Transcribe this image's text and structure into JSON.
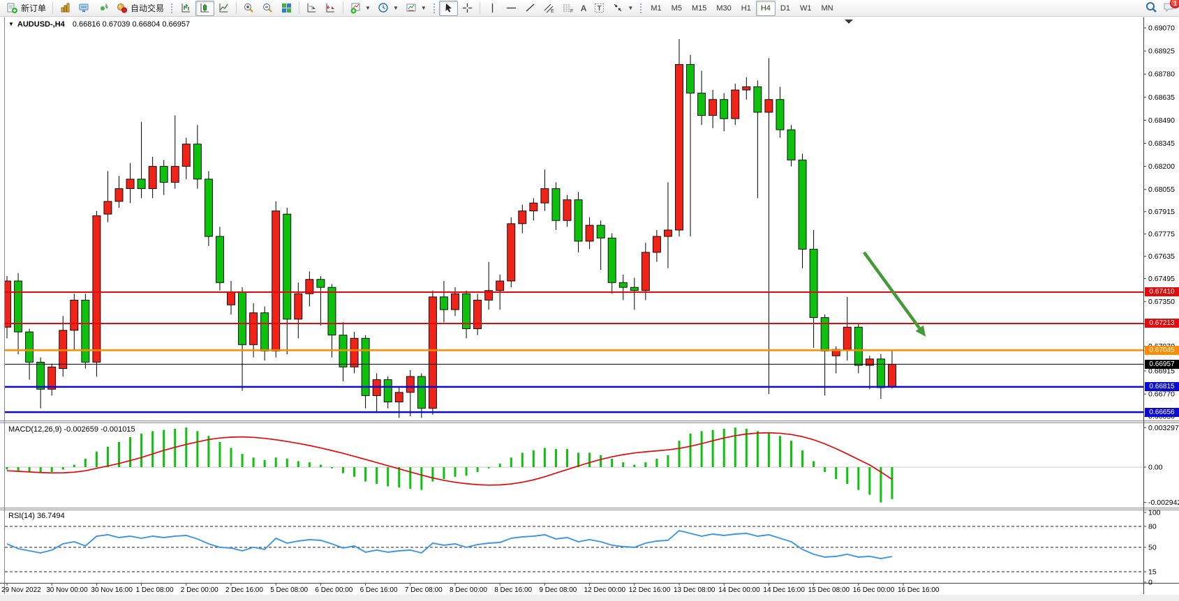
{
  "window": {
    "badge_count": "1"
  },
  "toolbar": {
    "new_order_label": "新订单",
    "autotrading_label": "自动交易",
    "timeframes": [
      "M1",
      "M5",
      "M15",
      "M30",
      "H1",
      "H4",
      "D1",
      "W1",
      "MN"
    ],
    "selected_timeframe": "H4",
    "text_tool_label": "A",
    "label_tool_label": "T",
    "channel_tool_label": "E",
    "fibo_tool_label": "F"
  },
  "chart": {
    "title": {
      "expander": "▼",
      "symbol": "AUDUSD-,H4",
      "open": "0.66816",
      "high": "0.67039",
      "low": "0.66804",
      "close": "0.66957"
    },
    "price_ticks": [
      "0.69070",
      "0.68925",
      "0.68780",
      "0.68635",
      "0.68490",
      "0.68345",
      "0.68200",
      "0.68055",
      "0.67915",
      "0.67775",
      "0.67635",
      "0.67495",
      "0.67350",
      "0.67210",
      "0.67070",
      "0.66915",
      "0.66770",
      "0.66630"
    ],
    "hlines": [
      {
        "price": 0.6741,
        "label": "0.67410",
        "color": "#e10b0b",
        "width": 2,
        "kind": "resistance-line"
      },
      {
        "price": 0.67213,
        "label": "0.67213",
        "color": "#e10b0b",
        "width": 2,
        "kind": "resistance-line"
      },
      {
        "price": 0.67045,
        "label": "0.67045",
        "color": "#ff8c00",
        "width": 2.5,
        "kind": "pivot-line"
      },
      {
        "price": 0.66957,
        "label": "0.66957",
        "color": "#000000",
        "width": 1,
        "kind": "bid-price-line"
      },
      {
        "price": 0.66815,
        "label": "0.66815",
        "color": "#0a0ad2",
        "width": 2.5,
        "kind": "support-line"
      },
      {
        "price": 0.66656,
        "label": "0.66656",
        "color": "#0a0ad2",
        "width": 2.5,
        "kind": "support-line"
      }
    ],
    "time_labels": [
      "29 Nov 2022",
      "30 Nov 00:00",
      "30 Nov 16:00",
      "1 Dec 08:00",
      "2 Dec 00:00",
      "2 Dec 16:00",
      "5 Dec 08:00",
      "6 Dec 00:00",
      "6 Dec 16:00",
      "7 Dec 08:00",
      "8 Dec 00:00",
      "8 Dec 16:00",
      "9 Dec 08:00",
      "12 Dec 00:00",
      "12 Dec 16:00",
      "13 Dec 08:00",
      "14 Dec 00:00",
      "14 Dec 16:00",
      "15 Dec 08:00",
      "16 Dec 00:00",
      "16 Dec 16:00"
    ]
  },
  "chart_data": {
    "type": "candlestick",
    "symbol": "AUDUSD",
    "timeframe": "H4",
    "bull_color": "#ef2318",
    "bear_color": "#0dc10d",
    "ylim": [
      0.66605,
      0.69127
    ],
    "ohlc": [
      [
        0.6719,
        0.6751,
        0.6712,
        0.6748
      ],
      [
        0.6748,
        0.6753,
        0.6702,
        0.6716
      ],
      [
        0.6716,
        0.6718,
        0.6686,
        0.6697
      ],
      [
        0.6697,
        0.67,
        0.6668,
        0.668
      ],
      [
        0.668,
        0.6696,
        0.6676,
        0.6694
      ],
      [
        0.6693,
        0.6726,
        0.6688,
        0.6717
      ],
      [
        0.6717,
        0.674,
        0.6704,
        0.6736
      ],
      [
        0.6736,
        0.674,
        0.6693,
        0.6697
      ],
      [
        0.6697,
        0.6792,
        0.6688,
        0.6789
      ],
      [
        0.679,
        0.6817,
        0.6785,
        0.6798
      ],
      [
        0.6798,
        0.6814,
        0.6794,
        0.6806
      ],
      [
        0.6806,
        0.6822,
        0.6797,
        0.6812
      ],
      [
        0.6812,
        0.6848,
        0.68,
        0.6806
      ],
      [
        0.6806,
        0.6826,
        0.68,
        0.682
      ],
      [
        0.682,
        0.6824,
        0.6802,
        0.681
      ],
      [
        0.681,
        0.6852,
        0.6806,
        0.682
      ],
      [
        0.682,
        0.6838,
        0.6812,
        0.6834
      ],
      [
        0.6834,
        0.6846,
        0.6806,
        0.6812
      ],
      [
        0.6812,
        0.6817,
        0.677,
        0.6776
      ],
      [
        0.6776,
        0.6782,
        0.6742,
        0.6747
      ],
      [
        0.6733,
        0.6748,
        0.6727,
        0.6741
      ],
      [
        0.6741,
        0.6744,
        0.6679,
        0.6708
      ],
      [
        0.6708,
        0.6734,
        0.67,
        0.6728
      ],
      [
        0.6728,
        0.6732,
        0.6698,
        0.6704
      ],
      [
        0.6704,
        0.6798,
        0.67,
        0.6792
      ],
      [
        0.679,
        0.6794,
        0.6702,
        0.6724
      ],
      [
        0.6724,
        0.6747,
        0.6712,
        0.674
      ],
      [
        0.674,
        0.6754,
        0.6732,
        0.6749
      ],
      [
        0.6749,
        0.6751,
        0.672,
        0.6744
      ],
      [
        0.6744,
        0.6746,
        0.67,
        0.6714
      ],
      [
        0.6714,
        0.6722,
        0.6685,
        0.6694
      ],
      [
        0.6694,
        0.6716,
        0.669,
        0.6712
      ],
      [
        0.6712,
        0.6714,
        0.6668,
        0.6676
      ],
      [
        0.6676,
        0.669,
        0.6665,
        0.6686
      ],
      [
        0.6686,
        0.6688,
        0.6668,
        0.6672
      ],
      [
        0.6672,
        0.6682,
        0.6662,
        0.6678
      ],
      [
        0.6678,
        0.6692,
        0.6663,
        0.6688
      ],
      [
        0.6688,
        0.669,
        0.6662,
        0.6668
      ],
      [
        0.6668,
        0.6742,
        0.6664,
        0.6738
      ],
      [
        0.6738,
        0.6748,
        0.6722,
        0.673
      ],
      [
        0.673,
        0.6744,
        0.6726,
        0.674
      ],
      [
        0.674,
        0.6742,
        0.6712,
        0.6718
      ],
      [
        0.6718,
        0.674,
        0.6714,
        0.6736
      ],
      [
        0.6736,
        0.676,
        0.673,
        0.6742
      ],
      [
        0.6742,
        0.6752,
        0.673,
        0.6748
      ],
      [
        0.6748,
        0.6788,
        0.6744,
        0.6784
      ],
      [
        0.6784,
        0.6796,
        0.6778,
        0.6792
      ],
      [
        0.6792,
        0.68,
        0.6786,
        0.6797
      ],
      [
        0.6797,
        0.6818,
        0.6792,
        0.6806
      ],
      [
        0.6806,
        0.681,
        0.678,
        0.6786
      ],
      [
        0.6786,
        0.6802,
        0.6782,
        0.6799
      ],
      [
        0.6799,
        0.6804,
        0.6766,
        0.6773
      ],
      [
        0.6773,
        0.6788,
        0.6768,
        0.6783
      ],
      [
        0.6783,
        0.6786,
        0.6755,
        0.6775
      ],
      [
        0.6775,
        0.6778,
        0.674,
        0.6747
      ],
      [
        0.6747,
        0.6752,
        0.6736,
        0.6744
      ],
      [
        0.6744,
        0.675,
        0.673,
        0.6742
      ],
      [
        0.6742,
        0.6772,
        0.6736,
        0.6766
      ],
      [
        0.6766,
        0.678,
        0.676,
        0.6776
      ],
      [
        0.6776,
        0.681,
        0.6756,
        0.678
      ],
      [
        0.678,
        0.69,
        0.6776,
        0.6884
      ],
      [
        0.6884,
        0.689,
        0.6776,
        0.6866
      ],
      [
        0.6866,
        0.688,
        0.6846,
        0.6852
      ],
      [
        0.6852,
        0.6868,
        0.6844,
        0.6862
      ],
      [
        0.6862,
        0.6866,
        0.6842,
        0.685
      ],
      [
        0.685,
        0.6872,
        0.6846,
        0.6868
      ],
      [
        0.6868,
        0.6876,
        0.6862,
        0.687
      ],
      [
        0.687,
        0.6874,
        0.68,
        0.6854
      ],
      [
        0.6854,
        0.6888,
        0.6677,
        0.6862
      ],
      [
        0.6862,
        0.687,
        0.6838,
        0.6843
      ],
      [
        0.6843,
        0.6846,
        0.682,
        0.6824
      ],
      [
        0.6824,
        0.6828,
        0.6756,
        0.6768
      ],
      [
        0.6768,
        0.678,
        0.6706,
        0.6725
      ],
      [
        0.6725,
        0.6727,
        0.6676,
        0.6704
      ],
      [
        0.6701,
        0.6707,
        0.669,
        0.6705
      ],
      [
        0.6705,
        0.6738,
        0.6698,
        0.6719
      ],
      [
        0.6719,
        0.6721,
        0.669,
        0.6695
      ],
      [
        0.6695,
        0.6701,
        0.668,
        0.6699
      ],
      [
        0.6699,
        0.6702,
        0.6674,
        0.6681
      ],
      [
        0.66816,
        0.67039,
        0.66804,
        0.66957
      ]
    ],
    "indicators": {
      "macd": {
        "label": "MACD(12,26,9)",
        "main_value": "-0.002659",
        "signal_value": "-0.001015",
        "axis": [
          "0.003297",
          "0.00",
          "-0.002942"
        ],
        "hist_color": "#0dc10d",
        "signal_color": "#e00b0b",
        "histogram": [
          -0.0002,
          -0.0003,
          -0.0004,
          -0.00045,
          -0.0004,
          -0.0002,
          0.0002,
          0.0007,
          0.0013,
          0.0017,
          0.0021,
          0.0025,
          0.0028,
          0.003,
          0.0031,
          0.0032,
          0.0033,
          0.003,
          0.0026,
          0.0021,
          0.0016,
          0.0011,
          0.0008,
          0.0006,
          0.0008,
          0.0007,
          0.0005,
          0.0004,
          0.0002,
          -0.0001,
          -0.0005,
          -0.0008,
          -0.0012,
          -0.0014,
          -0.0016,
          -0.0017,
          -0.0018,
          -0.0019,
          -0.0012,
          -0.001,
          -0.0008,
          -0.0007,
          -0.0004,
          -0.0001,
          0.0003,
          0.0008,
          0.0012,
          0.0014,
          0.0016,
          0.0015,
          0.0015,
          0.0012,
          0.0012,
          0.001,
          0.0007,
          0.0004,
          0.0002,
          0.0004,
          0.0007,
          0.001,
          0.0022,
          0.0028,
          0.003,
          0.0031,
          0.0032,
          0.003297,
          0.0032,
          0.003,
          0.0029,
          0.0026,
          0.0022,
          0.0014,
          0.0005,
          -0.0004,
          -0.001,
          -0.0014,
          -0.0019,
          -0.0023,
          -0.002942,
          -0.002659
        ],
        "signal": [
          -0.0003,
          -0.00035,
          -0.0004,
          -0.00045,
          -0.00048,
          -0.00047,
          -0.00042,
          -0.0003,
          -0.0001,
          0.0001,
          0.0003,
          0.00055,
          0.0008,
          0.0011,
          0.0014,
          0.00165,
          0.0019,
          0.0021,
          0.0023,
          0.00243,
          0.0025,
          0.00252,
          0.00248,
          0.0024,
          0.00228,
          0.00214,
          0.00198,
          0.0018,
          0.0016,
          0.00138,
          0.00115,
          0.0009,
          0.00064,
          0.00038,
          0.00012,
          -0.00014,
          -0.0004,
          -0.00066,
          -0.0009,
          -0.0011,
          -0.00126,
          -0.00138,
          -0.00146,
          -0.0015,
          -0.00148,
          -0.0014,
          -0.00126,
          -0.00106,
          -0.0008,
          -0.0005,
          -0.0002,
          0.0001,
          0.00038,
          0.00064,
          0.00086,
          0.00104,
          0.00118,
          0.00128,
          0.00136,
          0.00144,
          0.00156,
          0.00174,
          0.00196,
          0.0022,
          0.00243,
          0.00262,
          0.00276,
          0.00284,
          0.00286,
          0.00282,
          0.00272,
          0.00254,
          0.00228,
          0.00194,
          0.00154,
          0.0011,
          0.00064,
          0.00018,
          -0.0004,
          -0.001015
        ]
      },
      "rsi": {
        "label": "RSI(14)",
        "value": "36.7494",
        "color": "#3b96e8",
        "levels": [
          "100",
          "80",
          "50",
          "15",
          "0"
        ],
        "dashed_levels": [
          80,
          50,
          15
        ],
        "values": [
          55,
          48,
          45,
          42,
          46,
          55,
          58,
          52,
          66,
          68,
          64,
          66,
          63,
          66,
          64,
          66,
          67,
          62,
          55,
          50,
          49,
          45,
          50,
          47,
          63,
          56,
          59,
          61,
          60,
          55,
          49,
          52,
          43,
          46,
          43,
          45,
          46,
          42,
          56,
          53,
          55,
          50,
          54,
          56,
          57,
          63,
          65,
          66,
          68,
          62,
          64,
          58,
          61,
          58,
          53,
          51,
          50,
          56,
          59,
          60,
          74,
          70,
          66,
          69,
          67,
          69,
          70,
          66,
          68,
          63,
          58,
          47,
          40,
          36,
          37,
          40,
          36,
          37,
          34,
          36.75
        ]
      }
    },
    "annotations": {
      "arrow": {
        "from_bar": 76.5,
        "from_price": 0.6766,
        "to_bar": 82,
        "to_price": 0.6713,
        "color": "#459a38"
      }
    }
  }
}
